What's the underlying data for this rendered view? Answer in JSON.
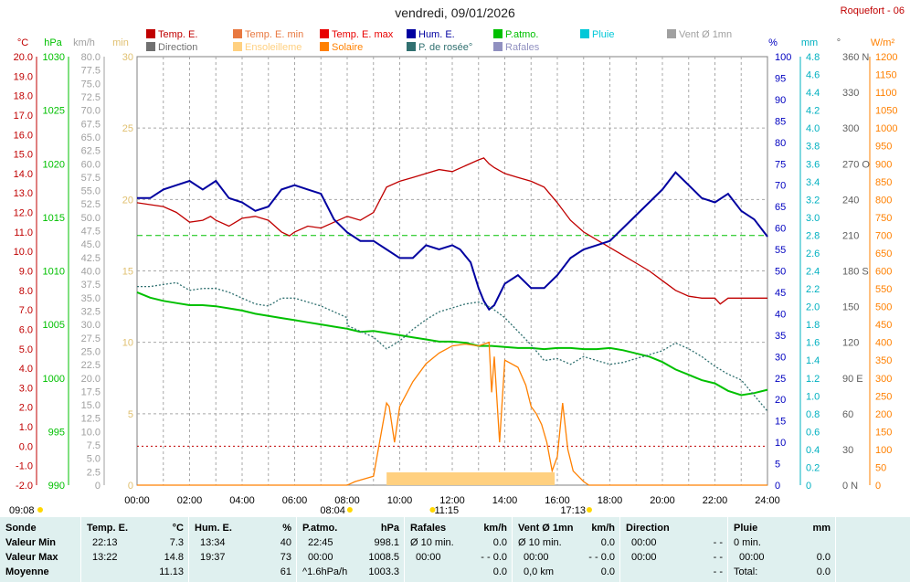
{
  "header": {
    "title": "vendredi, 09/01/2026",
    "station": "Roquefort - 06"
  },
  "legend": [
    {
      "label": "Temp. E.",
      "color": "#c00000"
    },
    {
      "label": "Temp. E. min",
      "color": "#e87840"
    },
    {
      "label": "Temp. E. max",
      "color": "#e80000"
    },
    {
      "label": "Hum. E.",
      "color": "#0000a0"
    },
    {
      "label": "P.atmo.",
      "color": "#00c000"
    },
    {
      "label": "Pluie",
      "color": "#00c8d8"
    },
    {
      "label": "Vent Ø 1mn",
      "color": "#a0a0a0"
    },
    {
      "label": "Direction",
      "color": "#707070"
    },
    {
      "label": "Ensoleilleme",
      "color": "#ffd080"
    },
    {
      "label": "Solaire",
      "color": "#ff8000"
    },
    {
      "label": "P. de rosée°",
      "color": "#307070"
    },
    {
      "label": "Rafales",
      "color": "#9090c0"
    }
  ],
  "axes": {
    "temp": {
      "unit": "°C",
      "ticks": [
        "20.0",
        "19.0",
        "18.0",
        "17.0",
        "16.0",
        "15.0",
        "14.0",
        "13.0",
        "12.0",
        "11.0",
        "10.0",
        "9.0",
        "8.0",
        "7.0",
        "6.0",
        "5.0",
        "4.0",
        "3.0",
        "2.0",
        "1.0",
        "0.0",
        "-1.0",
        "-2.0"
      ],
      "color": "#c00000"
    },
    "press": {
      "unit": "hPa",
      "ticks": [
        "1030",
        "1025",
        "1020",
        "1015",
        "1010",
        "1005",
        "1000",
        "995",
        "990"
      ],
      "color": "#00c000"
    },
    "wind": {
      "unit": "km/h",
      "ticks": [
        "80.0",
        "77.5",
        "75.0",
        "72.5",
        "70.0",
        "67.5",
        "65.0",
        "62.5",
        "60.0",
        "57.5",
        "55.0",
        "52.5",
        "50.0",
        "47.5",
        "45.0",
        "42.5",
        "40.0",
        "37.5",
        "35.0",
        "32.5",
        "30.0",
        "27.5",
        "25.0",
        "22.5",
        "20.0",
        "17.5",
        "15.0",
        "12.5",
        "10.0",
        "7.5",
        "5.0",
        "2.5",
        "0"
      ],
      "color": "#a0a0a0"
    },
    "min": {
      "unit": "min",
      "ticks": [
        "30",
        "25",
        "20",
        "15",
        "10",
        "5",
        "0"
      ],
      "color": "#e0c070"
    },
    "hum": {
      "unit": "%",
      "ticks": [
        "100",
        "95",
        "90",
        "85",
        "80",
        "75",
        "70",
        "65",
        "60",
        "55",
        "50",
        "45",
        "40",
        "35",
        "30",
        "25",
        "20",
        "15",
        "10",
        "5",
        "0"
      ],
      "color": "#0000c0"
    },
    "rain": {
      "unit": "mm",
      "ticks": [
        "4.8",
        "4.6",
        "4.4",
        "4.2",
        "4.0",
        "3.8",
        "3.6",
        "3.4",
        "3.2",
        "3.0",
        "2.8",
        "2.6",
        "2.4",
        "2.2",
        "2.0",
        "1.8",
        "1.6",
        "1.4",
        "1.2",
        "1.0",
        "0.8",
        "0.6",
        "0.4",
        "0.2",
        "0"
      ],
      "color": "#00b0c0"
    },
    "dir": {
      "unit": "°",
      "ticks": [
        "360 N",
        "330",
        "300",
        "270 O",
        "240",
        "210",
        "180 S",
        "150",
        "120",
        "90  E",
        "60",
        "30",
        "0  N"
      ],
      "color": "#606060"
    },
    "solar": {
      "unit": "W/m²",
      "ticks": [
        "1200",
        "1150",
        "1100",
        "1050",
        "1000",
        "950",
        "900",
        "850",
        "800",
        "750",
        "700",
        "650",
        "600",
        "550",
        "500",
        "450",
        "400",
        "350",
        "300",
        "250",
        "200",
        "150",
        "100",
        "50",
        "0"
      ],
      "color": "#ff8000"
    },
    "time": {
      "ticks": [
        "00:00",
        "02:00",
        "04:00",
        "06:00",
        "08:00",
        "10:00",
        "12:00",
        "14:00",
        "16:00",
        "18:00",
        "20:00",
        "22:00",
        "24:00"
      ]
    }
  },
  "events": {
    "moonrise": "09:08",
    "sunrise": "08:04",
    "noon": "11:15",
    "sunset": "17:13"
  },
  "chart_data": {
    "type": "line",
    "x_unit": "hours",
    "xlim": [
      0,
      24
    ],
    "series": [
      {
        "name": "Temp. E.",
        "unit": "°C",
        "ylim": [
          -2,
          20
        ],
        "color": "#c00000",
        "x": [
          0,
          0.5,
          1,
          1.5,
          2,
          2.5,
          2.8,
          3,
          3.5,
          4,
          4.5,
          5,
          5.5,
          5.8,
          6,
          6.5,
          7,
          7.5,
          8,
          8.5,
          9,
          9.5,
          10,
          10.5,
          11,
          11.5,
          12,
          12.5,
          13,
          13.2,
          13.4,
          13.6,
          14,
          14.5,
          15,
          15.5,
          16,
          16.5,
          17,
          17.5,
          18,
          18.5,
          19,
          19.5,
          20,
          20.5,
          21,
          21.5,
          22,
          22.2,
          22.5,
          23,
          23.5,
          24
        ],
        "values": [
          12.5,
          12.4,
          12.3,
          12.0,
          11.5,
          11.6,
          11.8,
          11.6,
          11.3,
          11.7,
          11.8,
          11.6,
          11.0,
          10.8,
          11.0,
          11.3,
          11.2,
          11.5,
          11.8,
          11.6,
          12.0,
          13.3,
          13.6,
          13.8,
          14.0,
          14.2,
          14.1,
          14.4,
          14.7,
          14.8,
          14.5,
          14.3,
          14.0,
          13.8,
          13.6,
          13.3,
          12.5,
          11.6,
          11.0,
          10.6,
          10.2,
          9.8,
          9.4,
          9.0,
          8.5,
          8.0,
          7.7,
          7.6,
          7.6,
          7.3,
          7.6,
          7.6,
          7.6,
          7.6
        ]
      },
      {
        "name": "Hum. E.",
        "unit": "%",
        "ylim": [
          0,
          100
        ],
        "color": "#0000a0",
        "x": [
          0,
          0.5,
          1,
          1.5,
          2,
          2.5,
          3,
          3.5,
          4,
          4.5,
          5,
          5.5,
          6,
          6.5,
          7,
          7.5,
          8,
          8.5,
          9,
          9.5,
          10,
          10.5,
          11,
          11.5,
          12,
          12.3,
          12.7,
          13,
          13.2,
          13.4,
          13.6,
          14,
          14.5,
          15,
          15.5,
          16,
          16.5,
          17,
          17.5,
          18,
          18.5,
          19,
          19.5,
          20,
          20.5,
          21,
          21.5,
          22,
          22.5,
          23,
          23.5,
          24
        ],
        "values": [
          67,
          67,
          69,
          70,
          71,
          69,
          71,
          67,
          66,
          64,
          65,
          69,
          70,
          69,
          68,
          62,
          59,
          57,
          57,
          55,
          53,
          53,
          56,
          55,
          56,
          55,
          52,
          46,
          43,
          41,
          42,
          47,
          49,
          46,
          46,
          49,
          53,
          55,
          56,
          57,
          60,
          63,
          66,
          69,
          73,
          70,
          67,
          66,
          68,
          64,
          62,
          58
        ]
      },
      {
        "name": "P.atmo.",
        "unit": "hPa",
        "ylim": [
          990,
          1030
        ],
        "color": "#00c000",
        "x": [
          0,
          0.5,
          1,
          1.5,
          2,
          2.5,
          3,
          3.5,
          4,
          4.5,
          5,
          5.5,
          6,
          6.5,
          7,
          7.5,
          8,
          8.5,
          9,
          9.5,
          10,
          10.5,
          11,
          11.5,
          12,
          12.5,
          13,
          13.5,
          14,
          14.5,
          15,
          15.5,
          16,
          16.5,
          17,
          17.5,
          18,
          18.5,
          19,
          19.5,
          20,
          20.5,
          21,
          21.5,
          22,
          22.5,
          23,
          23.5,
          24
        ],
        "values": [
          1008.0,
          1007.5,
          1007.2,
          1007.0,
          1006.8,
          1006.8,
          1006.7,
          1006.5,
          1006.3,
          1006.0,
          1005.8,
          1005.6,
          1005.4,
          1005.2,
          1005.0,
          1004.8,
          1004.6,
          1004.3,
          1004.4,
          1004.2,
          1004.0,
          1003.8,
          1003.6,
          1003.4,
          1003.4,
          1003.3,
          1003.0,
          1003.0,
          1002.9,
          1002.8,
          1002.8,
          1002.7,
          1002.8,
          1002.8,
          1002.7,
          1002.7,
          1002.8,
          1002.6,
          1002.3,
          1002.0,
          1001.5,
          1000.8,
          1000.3,
          999.8,
          999.5,
          998.8,
          998.4,
          998.6,
          998.9
        ]
      },
      {
        "name": "P. de rosée°",
        "unit": "°C",
        "ylim": [
          -2,
          20
        ],
        "color": "#307070",
        "x": [
          0,
          0.5,
          1,
          1.5,
          2,
          2.5,
          3,
          3.5,
          4,
          4.5,
          5,
          5.5,
          6,
          6.5,
          7,
          7.5,
          8,
          8,
          9,
          9.5,
          10,
          10.5,
          11,
          11.5,
          12,
          12.5,
          13,
          13.5,
          14,
          14.5,
          15,
          15.5,
          16,
          16.5,
          17,
          17.5,
          18,
          18.5,
          19,
          19.5,
          20,
          20.5,
          21,
          21.5,
          22,
          22.5,
          23,
          23.5,
          24
        ],
        "values": [
          8.2,
          8.2,
          8.3,
          8.4,
          8.0,
          8.1,
          8.1,
          7.9,
          7.6,
          7.3,
          7.2,
          7.6,
          7.6,
          7.4,
          7.2,
          6.9,
          6.6,
          6.2,
          5.6,
          5.0,
          5.4,
          6.0,
          6.5,
          6.9,
          7.1,
          7.3,
          7.4,
          7.1,
          6.6,
          5.9,
          5.2,
          4.4,
          4.5,
          4.2,
          4.6,
          4.4,
          4.2,
          4.3,
          4.5,
          4.7,
          4.9,
          5.3,
          5.0,
          4.6,
          4.1,
          3.7,
          3.4,
          2.6,
          1.8
        ]
      },
      {
        "name": "Solaire",
        "unit": "W/m²",
        "ylim": [
          0,
          1200
        ],
        "color": "#ff8000",
        "x": [
          0,
          8.0,
          8.3,
          9,
          9.5,
          9.6,
          9.8,
          10,
          10.5,
          11,
          11.5,
          12,
          12.5,
          13,
          13.4,
          13.5,
          13.6,
          13.8,
          14,
          14.5,
          14.8,
          15,
          15.2,
          15.4,
          15.6,
          15.8,
          16,
          16.2,
          16.4,
          16.6,
          17.0,
          17.2,
          24
        ],
        "values": [
          0,
          0,
          10,
          25,
          230,
          220,
          120,
          220,
          290,
          340,
          370,
          390,
          395,
          390,
          400,
          260,
          360,
          120,
          350,
          330,
          280,
          220,
          200,
          170,
          120,
          40,
          80,
          230,
          100,
          40,
          10,
          0,
          0
        ]
      },
      {
        "name": "Ensoleilleme",
        "unit": "min",
        "ylim": [
          0,
          30
        ],
        "color": "#ffd080",
        "x": [
          9.5,
          15.9
        ],
        "values": [
          1,
          1
        ]
      }
    ]
  },
  "table": {
    "headers": {
      "sonde": "Sonde",
      "temp": "Temp. E.",
      "temp_unit": "°C",
      "hum": "Hum. E.",
      "hum_unit": "%",
      "press": "P.atmo.",
      "press_unit": "hPa",
      "rafales": "Rafales",
      "rafales_unit": "km/h",
      "vent": "Vent Ø 1mn",
      "vent_unit": "km/h",
      "dir": "Direction",
      "pluie": "Pluie",
      "pluie_unit": "mm"
    },
    "rows": [
      {
        "label": "Valeur Min",
        "temp_t": "22:13",
        "temp_v": "7.3",
        "hum_t": "13:34",
        "hum_v": "40",
        "press_t": "22:45",
        "press_v": "998.1",
        "raf_t": "Ø 10 min.",
        "raf_v": "0.0",
        "vent_t": "Ø 10 min.",
        "vent_v": "0.0",
        "dir_t": "00:00",
        "dir_v": "- -",
        "pluie_t": "0 min.",
        "pluie_v": ""
      },
      {
        "label": "Valeur Max",
        "temp_t": "13:22",
        "temp_v": "14.8",
        "hum_t": "19:37",
        "hum_v": "73",
        "press_t": "00:00",
        "press_v": "1008.5",
        "raf_t": "00:00",
        "raf_v": "- - 0.0",
        "vent_t": "00:00",
        "vent_v": "- - 0.0",
        "dir_t": "00:00",
        "dir_v": "- -",
        "pluie_t": "00:00",
        "pluie_v": "0.0"
      },
      {
        "label": "Moyenne",
        "temp_t": "",
        "temp_v": "11.13",
        "hum_t": "",
        "hum_v": "61",
        "press_t": "^1.6hPa/h",
        "press_v": "1003.3",
        "raf_t": "",
        "raf_v": "0.0",
        "vent_t": "0,0 km",
        "vent_v": "0.0",
        "dir_t": "",
        "dir_v": "- -",
        "pluie_t": "Total:",
        "pluie_v": "0.0"
      }
    ]
  }
}
